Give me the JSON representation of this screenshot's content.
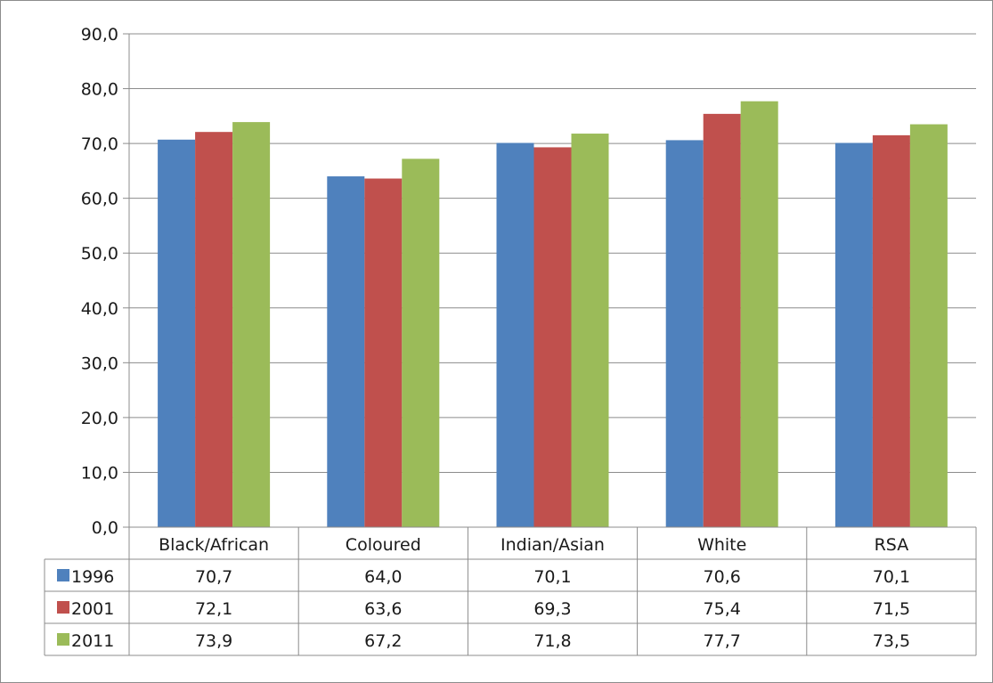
{
  "chart_data": {
    "type": "bar",
    "categories": [
      "Black/African",
      "Coloured",
      "Indian/Asian",
      "White",
      "RSA"
    ],
    "series": [
      {
        "name": "1996",
        "color": "#4f81bd",
        "values": [
          70.7,
          64.0,
          70.1,
          70.6,
          70.1
        ],
        "labels": [
          "70,7",
          "64,0",
          "70,1",
          "70,6",
          "70,1"
        ]
      },
      {
        "name": "2001",
        "color": "#c0504d",
        "values": [
          72.1,
          63.6,
          69.3,
          75.4,
          71.5
        ],
        "labels": [
          "72,1",
          "63,6",
          "69,3",
          "75,4",
          "71,5"
        ]
      },
      {
        "name": "2011",
        "color": "#9bbb59",
        "values": [
          73.9,
          67.2,
          71.8,
          77.7,
          73.5
        ],
        "labels": [
          "73,9",
          "67,2",
          "71,8",
          "77,7",
          "73,5"
        ]
      }
    ],
    "ylim": [
      0,
      90
    ],
    "yticks": [
      0,
      10,
      20,
      30,
      40,
      50,
      60,
      70,
      80,
      90
    ],
    "ytick_labels": [
      "0,0",
      "10,0",
      "20,0",
      "30,0",
      "40,0",
      "50,0",
      "60,0",
      "70,0",
      "80,0",
      "90,0"
    ],
    "grid": true,
    "legend": "data-table"
  }
}
